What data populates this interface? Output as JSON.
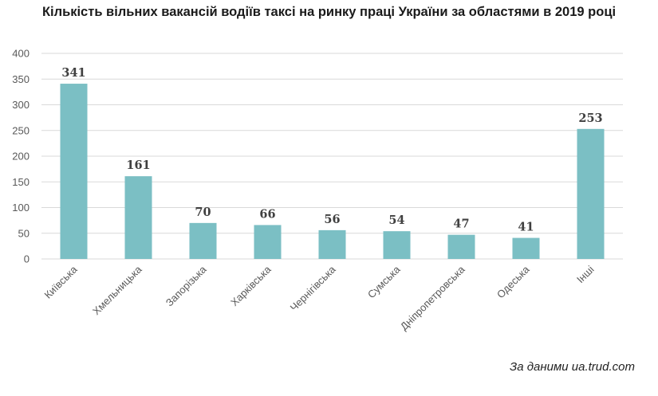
{
  "title": "Кількість вільних вакансій водіїв таксі на ринку праці України за областями в 2019 році",
  "source_note": "За даними ua.trud.com",
  "colors": {
    "bar": "#7bbfc4",
    "grid": "#d9d9d9",
    "text": "#595959"
  },
  "chart_data": {
    "type": "bar",
    "title": "Кількість вільних вакансій водіїв таксі на ринку праці України за областями в 2019 році",
    "xlabel": "",
    "ylabel": "",
    "categories": [
      "Київська",
      "Хмельницька",
      "Запорізька",
      "Харківська",
      "Чернігівська",
      "Сумська",
      "Дніпропетровська",
      "Одеська",
      "Інші"
    ],
    "values": [
      341,
      161,
      70,
      66,
      56,
      54,
      47,
      41,
      253
    ],
    "ylim": [
      0,
      400
    ],
    "yticks": [
      0,
      50,
      100,
      150,
      200,
      250,
      300,
      350,
      400
    ],
    "grid": true,
    "legend": "none",
    "data_labels": true
  }
}
